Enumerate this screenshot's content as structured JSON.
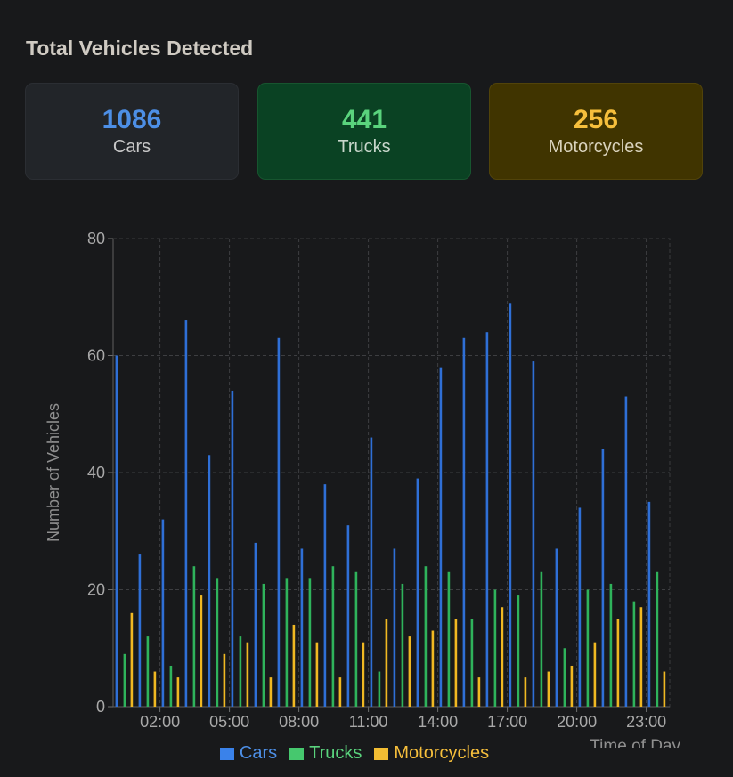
{
  "page": {
    "title": "Total Vehicles Detected"
  },
  "summary": [
    {
      "value": "1086",
      "label": "Cars"
    },
    {
      "value": "441",
      "label": "Trucks"
    },
    {
      "value": "256",
      "label": "Motorcycles"
    }
  ],
  "colors": {
    "cars": "#2f6fd6",
    "trucks": "#2fb35b",
    "motorcycles": "#f0b822"
  },
  "chart_data": {
    "type": "bar",
    "title": "",
    "xlabel": "Time of Day",
    "ylabel": "Number of Vehicles",
    "ylim": [
      0,
      80
    ],
    "yticks": [
      0,
      20,
      40,
      60,
      80
    ],
    "xticks": [
      "02:00",
      "05:00",
      "08:00",
      "11:00",
      "14:00",
      "17:00",
      "20:00",
      "23:00"
    ],
    "xtick_hours": [
      2,
      5,
      8,
      11,
      14,
      17,
      20,
      23
    ],
    "x_hours": [
      0,
      1,
      2,
      3,
      4,
      5,
      6,
      7,
      8,
      9,
      10,
      11,
      12,
      13,
      14,
      15,
      16,
      17,
      18,
      19,
      20,
      21,
      22,
      23
    ],
    "grid": true,
    "legend_position": "bottom",
    "series": [
      {
        "name": "Cars",
        "values": [
          60,
          26,
          32,
          66,
          43,
          54,
          28,
          63,
          27,
          38,
          31,
          46,
          27,
          39,
          58,
          63,
          64,
          69,
          59,
          27,
          34,
          44,
          53,
          35
        ]
      },
      {
        "name": "Trucks",
        "values": [
          9,
          12,
          7,
          24,
          22,
          12,
          21,
          22,
          22,
          24,
          23,
          6,
          21,
          24,
          23,
          15,
          20,
          19,
          23,
          10,
          20,
          21,
          18,
          23
        ]
      },
      {
        "name": "Motorcycles",
        "values": [
          16,
          6,
          5,
          19,
          9,
          11,
          5,
          14,
          11,
          5,
          11,
          15,
          12,
          13,
          15,
          5,
          17,
          5,
          6,
          7,
          11,
          15,
          17,
          6
        ]
      }
    ]
  }
}
